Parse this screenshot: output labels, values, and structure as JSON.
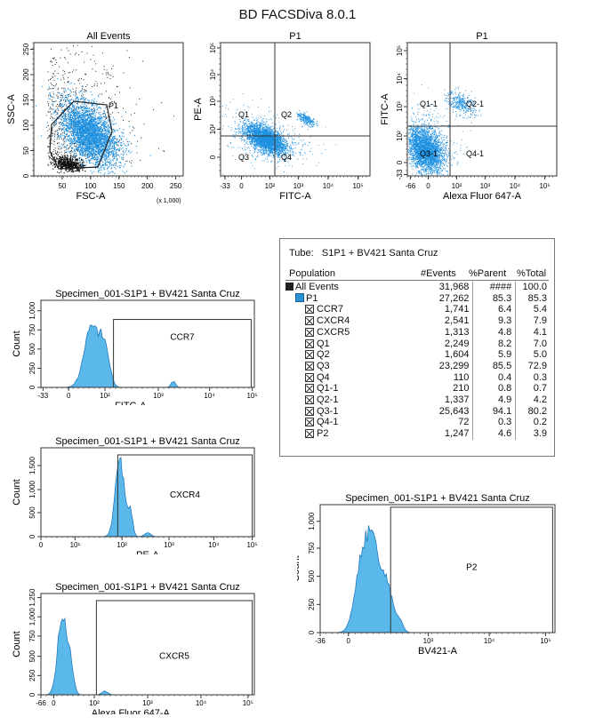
{
  "app": {
    "title": "BD FACSDiva 8.0.1"
  },
  "stats": {
    "tube_label": "Tube:",
    "tube_name": "S1P1 + BV421 Santa Cruz",
    "columns": [
      "Population",
      "#Events",
      "%Parent",
      "%Total"
    ],
    "rows": [
      {
        "name": "All Events",
        "events": "31,968",
        "parent": "####",
        "total": "100.0",
        "level": 0,
        "icon": "black"
      },
      {
        "name": "P1",
        "events": "27,262",
        "parent": "85.3",
        "total": "85.3",
        "level": 1,
        "icon": "blue"
      },
      {
        "name": "CCR7",
        "events": "1,741",
        "parent": "6.4",
        "total": "5.4",
        "level": 2,
        "icon": "x"
      },
      {
        "name": "CXCR4",
        "events": "2,541",
        "parent": "9.3",
        "total": "7.9",
        "level": 2,
        "icon": "x"
      },
      {
        "name": "CXCR5",
        "events": "1,313",
        "parent": "4.8",
        "total": "4.1",
        "level": 2,
        "icon": "x"
      },
      {
        "name": "Q1",
        "events": "2,249",
        "parent": "8.2",
        "total": "7.0",
        "level": 2,
        "icon": "x"
      },
      {
        "name": "Q2",
        "events": "1,604",
        "parent": "5.9",
        "total": "5.0",
        "level": 2,
        "icon": "x"
      },
      {
        "name": "Q3",
        "events": "23,299",
        "parent": "85.5",
        "total": "72.9",
        "level": 2,
        "icon": "x"
      },
      {
        "name": "Q4",
        "events": "110",
        "parent": "0.4",
        "total": "0.3",
        "level": 2,
        "icon": "x"
      },
      {
        "name": "Q1-1",
        "events": "210",
        "parent": "0.8",
        "total": "0.7",
        "level": 2,
        "icon": "x"
      },
      {
        "name": "Q2-1",
        "events": "1,337",
        "parent": "4.9",
        "total": "4.2",
        "level": 2,
        "icon": "x"
      },
      {
        "name": "Q3-1",
        "events": "25,643",
        "parent": "94.1",
        "total": "80.2",
        "level": 2,
        "icon": "x"
      },
      {
        "name": "Q4-1",
        "events": "72",
        "parent": "0.3",
        "total": "0.2",
        "level": 2,
        "icon": "x"
      },
      {
        "name": "P2",
        "events": "1,247",
        "parent": "4.6",
        "total": "3.9",
        "level": 2,
        "icon": "x"
      }
    ]
  },
  "colors": {
    "events": "#1e90e0",
    "gated_dark": "#111111",
    "fill": "#5ab8ea"
  },
  "chart_data": [
    {
      "id": "scatter1",
      "type": "scatter",
      "title": "All Events",
      "xlabel": "FSC-A",
      "ylabel": "SSC-A",
      "x_scale_note": "(x 1,000)",
      "y_scale_note": "(x 1,000)",
      "xlim": [
        0,
        262
      ],
      "ylim": [
        0,
        262
      ],
      "xticks": [
        "50",
        "100",
        "150",
        "200",
        "250"
      ],
      "yticks": [
        "0",
        "50",
        "100",
        "150",
        "200",
        "250"
      ],
      "gates": [
        {
          "name": "P1"
        }
      ]
    },
    {
      "id": "scatter2",
      "type": "scatter",
      "title": "P1",
      "xlabel": "FITC-A",
      "ylabel": "PE-A",
      "x_scale": "log",
      "y_scale": "log",
      "xticks": [
        "-33",
        "0",
        "10²",
        "10³",
        "10⁴",
        "10⁵"
      ],
      "yticks": [
        "0",
        "10²",
        "10³",
        "10⁴",
        "10⁵"
      ],
      "quadrants": [
        "Q1",
        "Q2",
        "Q3",
        "Q4"
      ]
    },
    {
      "id": "scatter3",
      "type": "scatter",
      "title": "P1",
      "xlabel": "Alexa Fluor 647-A",
      "ylabel": "FITC-A",
      "x_scale": "log",
      "y_scale": "log",
      "xticks": [
        "-66",
        "0",
        "10²",
        "10³",
        "10⁴",
        "10⁵"
      ],
      "yticks": [
        "-33",
        "0",
        "10²",
        "10³",
        "10⁴",
        "10⁵"
      ],
      "quadrants": [
        "Q1-1",
        "Q2-1",
        "Q3-1",
        "Q4-1"
      ]
    },
    {
      "id": "hist1",
      "type": "area",
      "title": "Specimen_001-S1P1 + BV421 Santa Cruz",
      "xlabel": "FITC-A",
      "ylabel": "Count",
      "x_scale": "log",
      "xticks": [
        "-33",
        "0",
        "10²",
        "10³",
        "10⁴",
        "10⁵"
      ],
      "yticks": [
        "0",
        "250",
        "500",
        "750",
        "1,000"
      ],
      "ylim": [
        0,
        1100
      ],
      "gate": "CCR7"
    },
    {
      "id": "hist2",
      "type": "area",
      "title": "Specimen_001-S1P1 + BV421 Santa Cruz",
      "xlabel": "PE-A",
      "ylabel": "Count",
      "x_scale": "log",
      "xticks": [
        "0",
        "10¹",
        "10²",
        "10³",
        "10⁴",
        "10⁵"
      ],
      "yticks": [
        "0",
        "500",
        "1,000",
        "1,500"
      ],
      "ylim": [
        0,
        1900
      ],
      "gate": "CXCR4"
    },
    {
      "id": "hist3",
      "type": "area",
      "title": "Specimen_001-S1P1 + BV421 Santa Cruz",
      "xlabel": "Alexa Fluor 647-A",
      "ylabel": "Count",
      "x_scale": "log",
      "xticks": [
        "-66",
        "0",
        "10²",
        "10³",
        "10⁴",
        "10⁵"
      ],
      "yticks": [
        "0",
        "250",
        "500",
        "750",
        "1,000",
        "1,250"
      ],
      "ylim": [
        0,
        1300
      ],
      "gate": "CXCR5"
    },
    {
      "id": "hist4",
      "type": "area",
      "title": "Specimen_001-S1P1 + BV421 Santa Cruz",
      "xlabel": "BV421-A",
      "ylabel": "Count",
      "x_scale": "log",
      "xticks": [
        "-36",
        "0",
        "10³",
        "10⁴",
        "10⁵"
      ],
      "yticks": [
        "0",
        "250",
        "500",
        "750",
        "1,000"
      ],
      "ylim": [
        0,
        1150
      ],
      "gate": "P2"
    }
  ]
}
